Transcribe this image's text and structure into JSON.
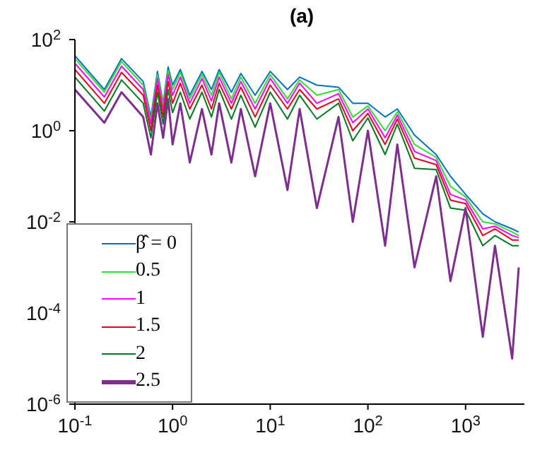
{
  "chart_data": {
    "type": "line",
    "title": "(a)",
    "log": "xy",
    "grid": false,
    "legend": "bottom left",
    "marker": "none",
    "line_style": "solid",
    "x": [
      0.1,
      0.2,
      0.3,
      0.5,
      0.6,
      0.7,
      0.8,
      0.9,
      1,
      1.2,
      1.5,
      2,
      2.5,
      3,
      4,
      5,
      7,
      10,
      15,
      20,
      30,
      50,
      70,
      100,
      150,
      200,
      300,
      500,
      700,
      1000,
      1500,
      2000,
      3000,
      3500
    ],
    "xlim": [
      0.1,
      4000
    ],
    "ylim": [
      1e-06,
      100
    ],
    "xticks": [
      {
        "value": 0.1,
        "label": "10$^{-1}$"
      },
      {
        "value": 1,
        "label": "10$^{0}$"
      },
      {
        "value": 10,
        "label": "10$^{1}$"
      },
      {
        "value": 100,
        "label": "10$^{2}$"
      },
      {
        "value": 1000,
        "label": "10$^{3}$"
      }
    ],
    "yticks": [
      {
        "value": 1e-06,
        "label": "10$^{-6}$"
      },
      {
        "value": 0.0001,
        "label": "10$^{-4}$"
      },
      {
        "value": 0.01,
        "label": "10$^{-2}$"
      },
      {
        "value": 1,
        "label": "10$^{0}$"
      },
      {
        "value": 100,
        "label": "10$^{2}$"
      }
    ],
    "series": [
      {
        "name": "β̂ = 0",
        "color": "#0072bd",
        "values": [
          44,
          8,
          38,
          12,
          2,
          20,
          4,
          25,
          10,
          22,
          6,
          20,
          8,
          22,
          7,
          18,
          6,
          20,
          8,
          15,
          10,
          9,
          4,
          4,
          2,
          3,
          0.8,
          0.3,
          0.1,
          0.04,
          0.015,
          0.01,
          0.007,
          0.006
        ]
      },
      {
        "name": "0.5",
        "color": "#33dd33",
        "values": [
          38,
          7,
          33,
          10,
          1.7,
          17,
          3.5,
          21,
          8,
          19,
          5,
          17,
          6,
          19,
          5,
          15,
          4,
          17,
          5,
          13,
          6,
          8,
          2,
          3.5,
          1,
          2.6,
          0.5,
          0.26,
          0.06,
          0.035,
          0.01,
          0.009,
          0.006,
          0.005
        ]
      },
      {
        "name": "1",
        "color": "#ff00ff",
        "values": [
          30,
          5.5,
          26,
          8,
          1.4,
          14,
          2.8,
          17,
          6,
          15,
          4,
          14,
          4.5,
          15,
          4,
          12,
          3,
          14,
          4,
          11,
          4,
          6.5,
          1.5,
          3,
          0.7,
          2.2,
          0.35,
          0.22,
          0.04,
          0.03,
          0.007,
          0.008,
          0.005,
          0.0045
        ]
      },
      {
        "name": "1.5",
        "color": "#e8001c",
        "values": [
          22,
          4,
          19,
          6,
          1,
          10,
          2,
          12,
          4,
          11,
          3,
          10,
          3,
          11,
          3,
          9,
          2,
          10,
          3,
          8,
          3,
          5,
          1,
          2.4,
          0.5,
          1.8,
          0.25,
          0.18,
          0.03,
          0.025,
          0.005,
          0.007,
          0.004,
          0.004
        ]
      },
      {
        "name": "2",
        "color": "#007a1e",
        "values": [
          15,
          2.7,
          13,
          4,
          0.7,
          7,
          1.4,
          8,
          2.5,
          7,
          1.8,
          7,
          2,
          8,
          1.8,
          6,
          1.2,
          7,
          1.8,
          6,
          1.8,
          4,
          0.6,
          1.9,
          0.3,
          1.4,
          0.15,
          0.14,
          0.02,
          0.018,
          0.003,
          0.005,
          0.003,
          0.003
        ]
      },
      {
        "name": "2.5",
        "color": "#7e2f8e",
        "values": [
          8,
          1.5,
          7,
          2,
          0.3,
          4,
          0.7,
          5,
          0.5,
          4,
          0.2,
          3,
          0.3,
          4,
          0.2,
          3,
          0.1,
          4,
          0.05,
          3,
          0.02,
          2,
          0.01,
          1,
          0.003,
          0.5,
          0.001,
          0.1,
          0.0005,
          0.02,
          3e-05,
          0.003,
          1e-05,
          0.001
        ]
      }
    ]
  }
}
